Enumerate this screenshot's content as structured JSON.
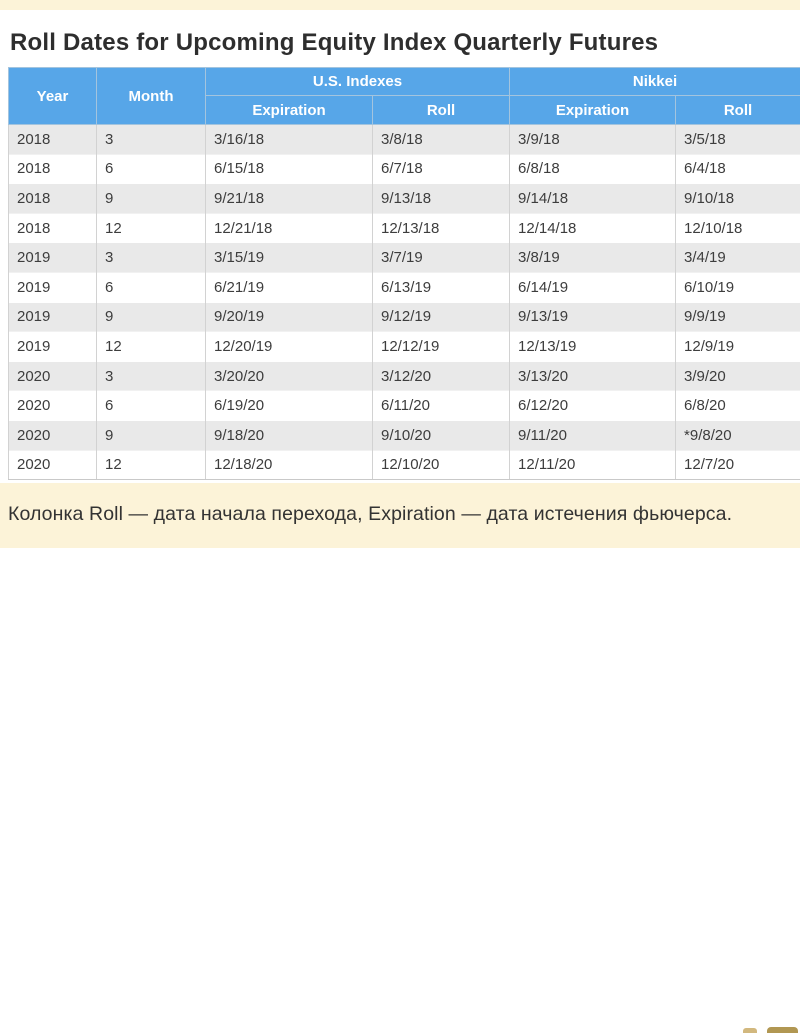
{
  "page": {
    "title": "Roll Dates for Upcoming Equity Index Quarterly Futures",
    "footer_note": "Колонка Roll — дата начала перехода, Expiration — дата истечения фьючерса."
  },
  "table": {
    "group_headers": {
      "us": "U.S. Indexes",
      "nikkei": "Nikkei"
    },
    "column_headers": {
      "year": "Year",
      "month": "Month",
      "us_expiration": "Expiration",
      "us_roll": "Roll",
      "nikkei_expiration": "Expiration",
      "nikkei_roll": "Roll"
    },
    "rows": [
      {
        "year": "2018",
        "month": "3",
        "us_expiration": "3/16/18",
        "us_roll": "3/8/18",
        "nikkei_expiration": "3/9/18",
        "nikkei_roll": "3/5/18"
      },
      {
        "year": "2018",
        "month": "6",
        "us_expiration": "6/15/18",
        "us_roll": "6/7/18",
        "nikkei_expiration": "6/8/18",
        "nikkei_roll": "6/4/18"
      },
      {
        "year": "2018",
        "month": "9",
        "us_expiration": "9/21/18",
        "us_roll": "9/13/18",
        "nikkei_expiration": "9/14/18",
        "nikkei_roll": "9/10/18"
      },
      {
        "year": "2018",
        "month": "12",
        "us_expiration": "12/21/18",
        "us_roll": "12/13/18",
        "nikkei_expiration": "12/14/18",
        "nikkei_roll": "12/10/18"
      },
      {
        "year": "2019",
        "month": "3",
        "us_expiration": "3/15/19",
        "us_roll": "3/7/19",
        "nikkei_expiration": "3/8/19",
        "nikkei_roll": "3/4/19"
      },
      {
        "year": "2019",
        "month": "6",
        "us_expiration": "6/21/19",
        "us_roll": "6/13/19",
        "nikkei_expiration": "6/14/19",
        "nikkei_roll": "6/10/19"
      },
      {
        "year": "2019",
        "month": "9",
        "us_expiration": "9/20/19",
        "us_roll": "9/12/19",
        "nikkei_expiration": "9/13/19",
        "nikkei_roll": "9/9/19"
      },
      {
        "year": "2019",
        "month": "12",
        "us_expiration": "12/20/19",
        "us_roll": "12/12/19",
        "nikkei_expiration": "12/13/19",
        "nikkei_roll": "12/9/19"
      },
      {
        "year": "2020",
        "month": "3",
        "us_expiration": "3/20/20",
        "us_roll": "3/12/20",
        "nikkei_expiration": "3/13/20",
        "nikkei_roll": "3/9/20"
      },
      {
        "year": "2020",
        "month": "6",
        "us_expiration": "6/19/20",
        "us_roll": "6/11/20",
        "nikkei_expiration": "6/12/20",
        "nikkei_roll": "6/8/20"
      },
      {
        "year": "2020",
        "month": "9",
        "us_expiration": "9/18/20",
        "us_roll": "9/10/20",
        "nikkei_expiration": "9/11/20",
        "nikkei_roll": "*9/8/20"
      },
      {
        "year": "2020",
        "month": "12",
        "us_expiration": "12/18/20",
        "us_roll": "12/10/20",
        "nikkei_expiration": "12/11/20",
        "nikkei_roll": "12/7/20"
      }
    ]
  },
  "colors": {
    "header_blue": "#57a6e8",
    "row_alt_gray": "#e9e9e9",
    "band_cream": "#fcf3d8",
    "cell_text": "#3d3d3d"
  }
}
